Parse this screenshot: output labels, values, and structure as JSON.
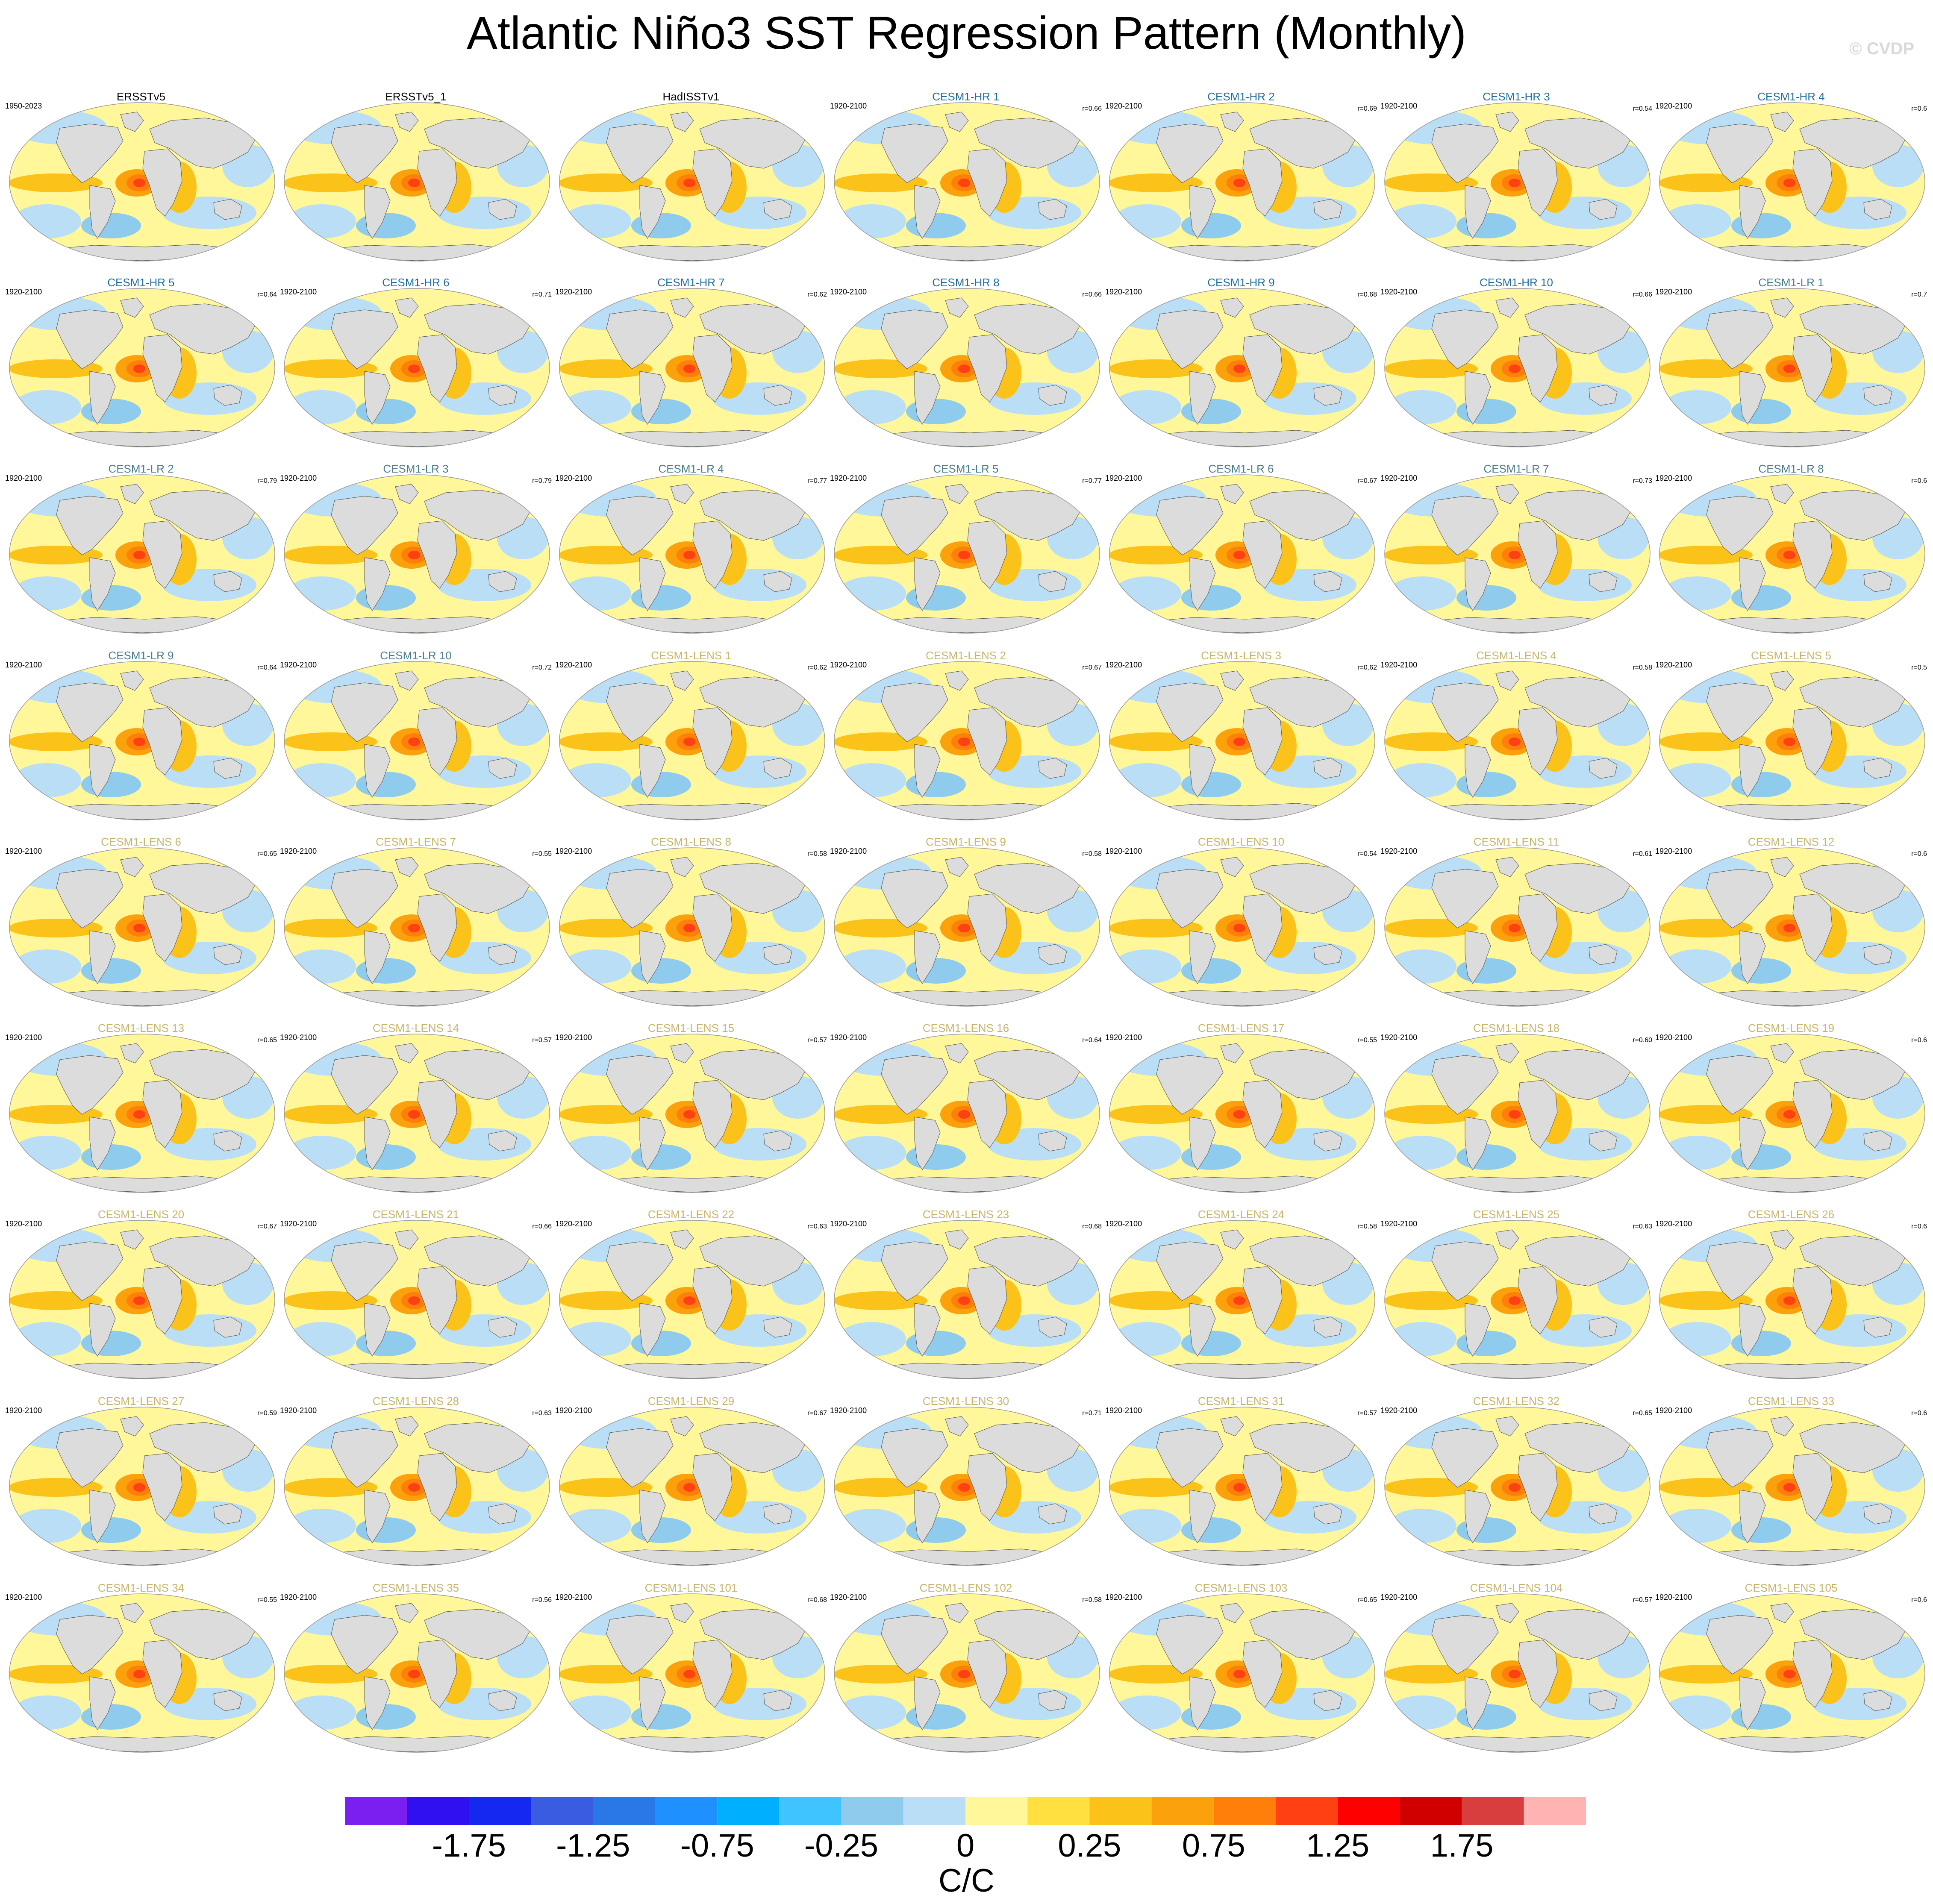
{
  "title": "Atlantic Niño3 SST Regression Pattern (Monthly)",
  "copyright": "© CVDP",
  "colors": {
    "land": "#dcdcdc",
    "title_obs": "#000000",
    "title_hr": "#1f6fa0",
    "title_lr": "#4a7f8e",
    "title_lens": "#c9b46a"
  },
  "chart_data": {
    "type": "heatmap",
    "projection": "Robinson (global map panels)",
    "layout": {
      "rows": 9,
      "columns": 7
    },
    "panels": [
      {
        "title": "ERSSTv5",
        "years": "1950-2023",
        "corr": "",
        "group": "obs"
      },
      {
        "title": "ERSSTv5_1",
        "years": "",
        "corr": "",
        "group": "obs"
      },
      {
        "title": "HadISSTv1",
        "years": "",
        "corr": "",
        "group": "obs"
      },
      {
        "title": "CESM1-HR 1",
        "years": "1920-2100",
        "corr": "r=0.66",
        "group": "hr"
      },
      {
        "title": "CESM1-HR 2",
        "years": "1920-2100",
        "corr": "r=0.69",
        "group": "hr"
      },
      {
        "title": "CESM1-HR 3",
        "years": "1920-2100",
        "corr": "r=0.54",
        "group": "hr"
      },
      {
        "title": "CESM1-HR 4",
        "years": "1920-2100",
        "corr": "r=0.6",
        "group": "hr"
      },
      {
        "title": "CESM1-HR 5",
        "years": "1920-2100",
        "corr": "r=0.64",
        "group": "hr"
      },
      {
        "title": "CESM1-HR 6",
        "years": "1920-2100",
        "corr": "r=0.71",
        "group": "hr"
      },
      {
        "title": "CESM1-HR 7",
        "years": "1920-2100",
        "corr": "r=0.62",
        "group": "hr"
      },
      {
        "title": "CESM1-HR 8",
        "years": "1920-2100",
        "corr": "r=0.66",
        "group": "hr"
      },
      {
        "title": "CESM1-HR 9",
        "years": "1920-2100",
        "corr": "r=0.68",
        "group": "hr"
      },
      {
        "title": "CESM1-HR 10",
        "years": "1920-2100",
        "corr": "r=0.66",
        "group": "hr"
      },
      {
        "title": "CESM1-LR 1",
        "years": "1920-2100",
        "corr": "r=0.7",
        "group": "lr"
      },
      {
        "title": "CESM1-LR 2",
        "years": "1920-2100",
        "corr": "r=0.79",
        "group": "lr"
      },
      {
        "title": "CESM1-LR 3",
        "years": "1920-2100",
        "corr": "r=0.79",
        "group": "lr"
      },
      {
        "title": "CESM1-LR 4",
        "years": "1920-2100",
        "corr": "r=0.77",
        "group": "lr"
      },
      {
        "title": "CESM1-LR 5",
        "years": "1920-2100",
        "corr": "r=0.77",
        "group": "lr"
      },
      {
        "title": "CESM1-LR 6",
        "years": "1920-2100",
        "corr": "r=0.67",
        "group": "lr"
      },
      {
        "title": "CESM1-LR 7",
        "years": "1920-2100",
        "corr": "r=0.73",
        "group": "lr"
      },
      {
        "title": "CESM1-LR 8",
        "years": "1920-2100",
        "corr": "r=0.6",
        "group": "lr"
      },
      {
        "title": "CESM1-LR 9",
        "years": "1920-2100",
        "corr": "r=0.64",
        "group": "lr"
      },
      {
        "title": "CESM1-LR 10",
        "years": "1920-2100",
        "corr": "r=0.72",
        "group": "lr"
      },
      {
        "title": "CESM1-LENS 1",
        "years": "1920-2100",
        "corr": "r=0.62",
        "group": "lens"
      },
      {
        "title": "CESM1-LENS 2",
        "years": "1920-2100",
        "corr": "r=0.67",
        "group": "lens"
      },
      {
        "title": "CESM1-LENS 3",
        "years": "1920-2100",
        "corr": "r=0.62",
        "group": "lens"
      },
      {
        "title": "CESM1-LENS 4",
        "years": "1920-2100",
        "corr": "r=0.58",
        "group": "lens"
      },
      {
        "title": "CESM1-LENS 5",
        "years": "1920-2100",
        "corr": "r=0.5",
        "group": "lens"
      },
      {
        "title": "CESM1-LENS 6",
        "years": "1920-2100",
        "corr": "r=0.65",
        "group": "lens"
      },
      {
        "title": "CESM1-LENS 7",
        "years": "1920-2100",
        "corr": "r=0.55",
        "group": "lens"
      },
      {
        "title": "CESM1-LENS 8",
        "years": "1920-2100",
        "corr": "r=0.58",
        "group": "lens"
      },
      {
        "title": "CESM1-LENS 9",
        "years": "1920-2100",
        "corr": "r=0.58",
        "group": "lens"
      },
      {
        "title": "CESM1-LENS 10",
        "years": "1920-2100",
        "corr": "r=0.54",
        "group": "lens"
      },
      {
        "title": "CESM1-LENS 11",
        "years": "1920-2100",
        "corr": "r=0.61",
        "group": "lens"
      },
      {
        "title": "CESM1-LENS 12",
        "years": "1920-2100",
        "corr": "r=0.6",
        "group": "lens"
      },
      {
        "title": "CESM1-LENS 13",
        "years": "1920-2100",
        "corr": "r=0.65",
        "group": "lens"
      },
      {
        "title": "CESM1-LENS 14",
        "years": "1920-2100",
        "corr": "r=0.57",
        "group": "lens"
      },
      {
        "title": "CESM1-LENS 15",
        "years": "1920-2100",
        "corr": "r=0.57",
        "group": "lens"
      },
      {
        "title": "CESM1-LENS 16",
        "years": "1920-2100",
        "corr": "r=0.64",
        "group": "lens"
      },
      {
        "title": "CESM1-LENS 17",
        "years": "1920-2100",
        "corr": "r=0.55",
        "group": "lens"
      },
      {
        "title": "CESM1-LENS 18",
        "years": "1920-2100",
        "corr": "r=0.60",
        "group": "lens"
      },
      {
        "title": "CESM1-LENS 19",
        "years": "1920-2100",
        "corr": "r=0.6",
        "group": "lens"
      },
      {
        "title": "CESM1-LENS 20",
        "years": "1920-2100",
        "corr": "r=0.67",
        "group": "lens"
      },
      {
        "title": "CESM1-LENS 21",
        "years": "1920-2100",
        "corr": "r=0.66",
        "group": "lens"
      },
      {
        "title": "CESM1-LENS 22",
        "years": "1920-2100",
        "corr": "r=0.63",
        "group": "lens"
      },
      {
        "title": "CESM1-LENS 23",
        "years": "1920-2100",
        "corr": "r=0.68",
        "group": "lens"
      },
      {
        "title": "CESM1-LENS 24",
        "years": "1920-2100",
        "corr": "r=0.58",
        "group": "lens"
      },
      {
        "title": "CESM1-LENS 25",
        "years": "1920-2100",
        "corr": "r=0.63",
        "group": "lens"
      },
      {
        "title": "CESM1-LENS 26",
        "years": "1920-2100",
        "corr": "r=0.6",
        "group": "lens"
      },
      {
        "title": "CESM1-LENS 27",
        "years": "1920-2100",
        "corr": "r=0.59",
        "group": "lens"
      },
      {
        "title": "CESM1-LENS 28",
        "years": "1920-2100",
        "corr": "r=0.63",
        "group": "lens"
      },
      {
        "title": "CESM1-LENS 29",
        "years": "1920-2100",
        "corr": "r=0.67",
        "group": "lens"
      },
      {
        "title": "CESM1-LENS 30",
        "years": "1920-2100",
        "corr": "r=0.71",
        "group": "lens"
      },
      {
        "title": "CESM1-LENS 31",
        "years": "1920-2100",
        "corr": "r=0.57",
        "group": "lens"
      },
      {
        "title": "CESM1-LENS 32",
        "years": "1920-2100",
        "corr": "r=0.65",
        "group": "lens"
      },
      {
        "title": "CESM1-LENS 33",
        "years": "1920-2100",
        "corr": "r=0.6",
        "group": "lens"
      },
      {
        "title": "CESM1-LENS 34",
        "years": "1920-2100",
        "corr": "r=0.55",
        "group": "lens"
      },
      {
        "title": "CESM1-LENS 35",
        "years": "1920-2100",
        "corr": "r=0.56",
        "group": "lens"
      },
      {
        "title": "CESM1-LENS 101",
        "years": "1920-2100",
        "corr": "r=0.68",
        "group": "lens"
      },
      {
        "title": "CESM1-LENS 102",
        "years": "1920-2100",
        "corr": "r=0.58",
        "group": "lens"
      },
      {
        "title": "CESM1-LENS 103",
        "years": "1920-2100",
        "corr": "r=0.65",
        "group": "lens"
      },
      {
        "title": "CESM1-LENS 104",
        "years": "1920-2100",
        "corr": "r=0.57",
        "group": "lens"
      },
      {
        "title": "CESM1-LENS 105",
        "years": "1920-2100",
        "corr": "r=0.6",
        "group": "lens"
      }
    ],
    "colorbar": {
      "units": "C/C",
      "colors": [
        "#7a1ff0",
        "#3010f0",
        "#1428f0",
        "#3a5ce0",
        "#2a78e8",
        "#1e90ff",
        "#00b0ff",
        "#40c4ff",
        "#8fcbec",
        "#b9def5",
        "#fff79a",
        "#ffe040",
        "#fbc219",
        "#fba10c",
        "#ff7f0a",
        "#ff4012",
        "#ff0000",
        "#d10000",
        "#d93e3e",
        "#ffb3b3"
      ],
      "tick_labels": [
        "-1.75",
        "-1.25",
        "-0.75",
        "-0.25",
        "0",
        "0.25",
        "0.75",
        "1.25",
        "1.75"
      ]
    }
  }
}
